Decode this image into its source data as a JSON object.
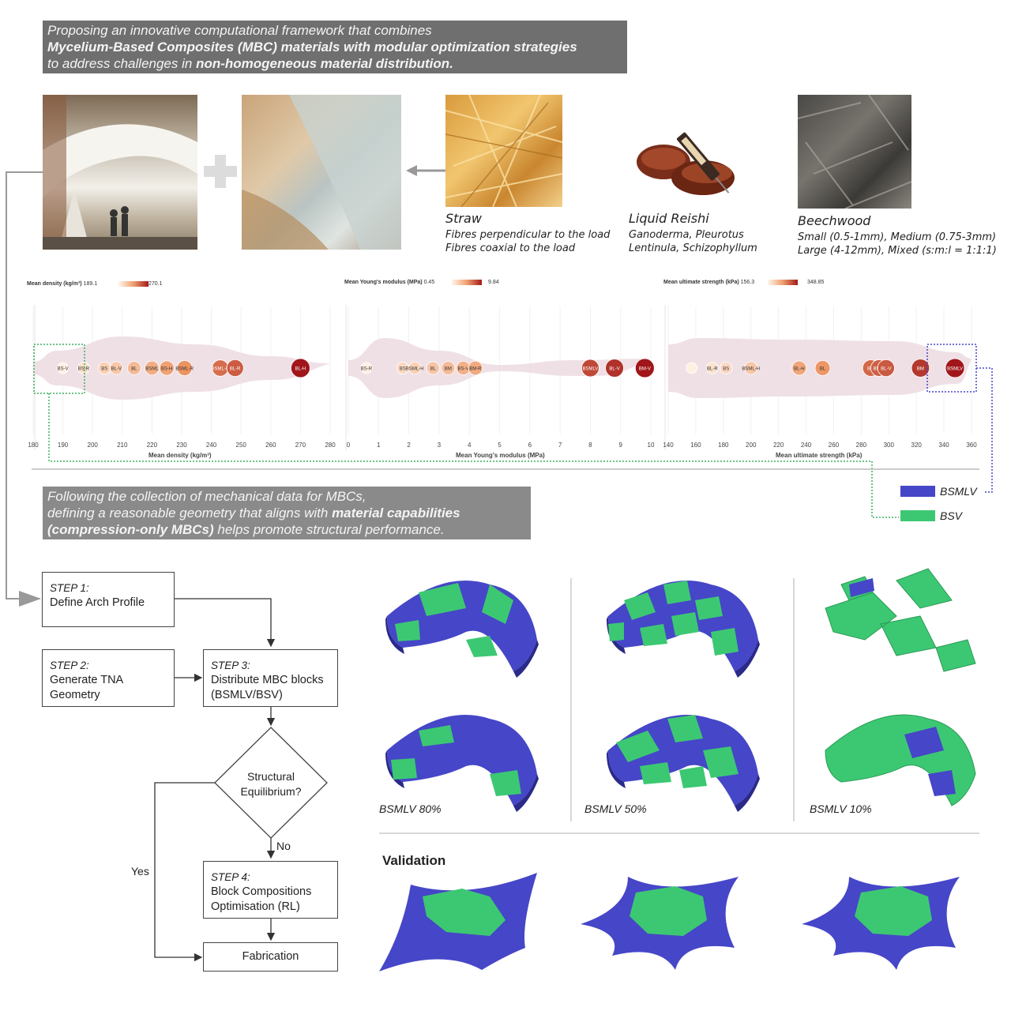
{
  "header": {
    "line1": "Proposing an innovative computational framework that combines",
    "line2": "Mycelium-Based Composites (MBC) materials with modular optimization strategies",
    "line3_pre": "to address challenges in ",
    "line3_bold": "non-homogeneous material distribution."
  },
  "materials": {
    "straw": {
      "title": "Straw",
      "sub1": "Fibres perpendicular to the load",
      "sub2": "Fibres coaxial to the load"
    },
    "reishi": {
      "title": "Liquid Reishi",
      "sub1": "Ganoderma, Pleurotus",
      "sub2": "Lentinula, Schizophyllum"
    },
    "beech": {
      "title": "Beechwood",
      "sub1": "Small (0.5-1mm), Medium (0.75-3mm)",
      "sub2": "Large (4-12mm), Mixed (s:m:l = 1:1:1)"
    }
  },
  "chart_data": [
    {
      "type": "scatter",
      "title": "Mean density (kg/m³)",
      "scale_min": "189.1",
      "scale_max": "270.1",
      "xlabel": "Mean density (kg/m³)",
      "xlim": [
        180,
        280
      ],
      "ticks": [
        "180",
        "190",
        "200",
        "210",
        "220",
        "230",
        "240",
        "250",
        "260",
        "270",
        "280"
      ],
      "points": [
        {
          "label": "BS-V",
          "x": 190
        },
        {
          "label": "BS-R",
          "x": 197
        },
        {
          "label": "BS",
          "x": 204
        },
        {
          "label": "BL-V",
          "x": 208
        },
        {
          "label": "BL",
          "x": 214
        },
        {
          "label": "BSML",
          "x": 220
        },
        {
          "label": "BS-H",
          "x": 225
        },
        {
          "label": "BSML-R",
          "x": 231
        },
        {
          "label": "BSML-H",
          "x": 243
        },
        {
          "label": "BL-R",
          "x": 248
        },
        {
          "label": "BL-H",
          "x": 270
        }
      ]
    },
    {
      "type": "scatter",
      "title": "Mean Young's modulus (MPa)",
      "scale_min": "0.45",
      "scale_max": "9.84",
      "xlabel": "Mean Young's modulus (MPa)",
      "xlim": [
        0,
        10
      ],
      "ticks": [
        "0",
        "1",
        "2",
        "3",
        "4",
        "5",
        "6",
        "7",
        "8",
        "9",
        "10"
      ],
      "points": [
        {
          "label": "BS-R",
          "x": 0.6
        },
        {
          "label": "BS",
          "x": 1.8
        },
        {
          "label": "BSML-H",
          "x": 2.2
        },
        {
          "label": "BL",
          "x": 2.8
        },
        {
          "label": "BM",
          "x": 3.3
        },
        {
          "label": "BS-V",
          "x": 3.8
        },
        {
          "label": "BM-R",
          "x": 4.2
        },
        {
          "label": "BSMLV",
          "x": 8.0
        },
        {
          "label": "BL-V",
          "x": 8.8
        },
        {
          "label": "BM-V",
          "x": 9.8
        }
      ]
    },
    {
      "type": "scatter",
      "title": "Mean ultimate strength (kPa)",
      "scale_min": "156.3",
      "scale_max": "348.85",
      "xlabel": "Mean ultimate strength (kPa)",
      "xlim": [
        140,
        360
      ],
      "ticks": [
        "140",
        "160",
        "180",
        "200",
        "220",
        "240",
        "260",
        "280",
        "300",
        "320",
        "340",
        "360"
      ],
      "points": [
        {
          "label": "",
          "x": 157
        },
        {
          "label": "BL-R",
          "x": 172
        },
        {
          "label": "BS",
          "x": 182
        },
        {
          "label": "BSML-H",
          "x": 200
        },
        {
          "label": "BL-H",
          "x": 235
        },
        {
          "label": "BL",
          "x": 252
        },
        {
          "label": "BM",
          "x": 287
        },
        {
          "label": "BM-V",
          "x": 293
        },
        {
          "label": "BL-V",
          "x": 298
        },
        {
          "label": "BM",
          "x": 323
        },
        {
          "label": "BSMLV",
          "x": 348
        }
      ]
    }
  ],
  "legend": {
    "bsmlv": "BSMLV",
    "bsv": "BSV",
    "bsmlv_color": "#4646c8",
    "bsv_color": "#3cc873"
  },
  "header2": {
    "line1": "Following the collection of mechanical data for MBCs,",
    "line2_pre": "defining a reasonable geometry that aligns with ",
    "line2_bold": "material capabilities",
    "line3_bold": "(compression-only MBCs)",
    "line3_post": " helps promote structural performance."
  },
  "flow": {
    "step1_tag": "STEP 1:",
    "step1": "Define Arch Profile",
    "step2_tag": "STEP 2:",
    "step2a": "Generate TNA",
    "step2b": "Geometry",
    "step3_tag": "STEP 3:",
    "step3a": "Distribute MBC blocks",
    "step3b": "(BSMLV/BSV)",
    "decision_a": "Structural",
    "decision_b": "Equilibrium?",
    "no": "No",
    "yes": "Yes",
    "step4_tag": "STEP 4:",
    "step4a": "Block Compositions",
    "step4b": "Optimisation (RL)",
    "fabrication": "Fabrication"
  },
  "variants": {
    "v80": "BSMLV 80%",
    "v50": "BSMLV 50%",
    "v10": "BSMLV 10%"
  },
  "validation": {
    "title": "Validation"
  }
}
